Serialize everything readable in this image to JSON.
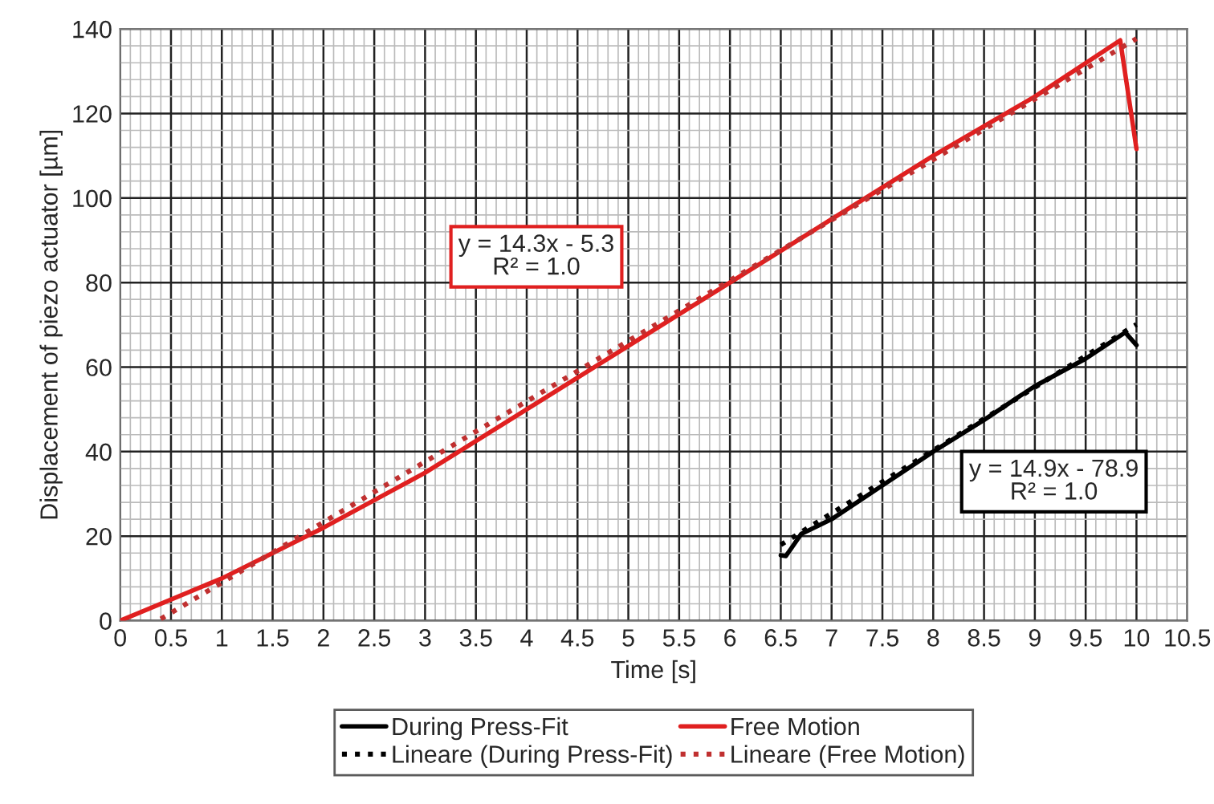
{
  "chart_data": {
    "type": "line",
    "xlabel": "Time [s]",
    "ylabel": "Displacement of piezo actuator [µm]",
    "xlim": [
      0,
      10.5
    ],
    "ylim": [
      0,
      140
    ],
    "xticks": [
      0,
      0.5,
      1,
      1.5,
      2,
      2.5,
      3,
      3.5,
      4,
      4.5,
      5,
      5.5,
      6,
      6.5,
      7,
      7.5,
      8,
      8.5,
      9,
      9.5,
      10,
      10.5
    ],
    "yticks": [
      0,
      20,
      40,
      60,
      80,
      100,
      120,
      140
    ],
    "grid": true,
    "legend": "bottom",
    "annotations": [
      "y = 14.3x - 5.3\nR² = 1.0",
      "y = 14.9x - 78.9\nR² = 1.0"
    ],
    "series": [
      {
        "name": "During Press-Fit",
        "color": "#000000",
        "line_style": "solid",
        "x": [
          6.5,
          6.55,
          6.6,
          6.7,
          7,
          7.5,
          8,
          8.5,
          9,
          9.5,
          9.89,
          10
        ],
        "values": [
          15.5,
          15.3,
          17,
          20.5,
          24,
          32,
          40,
          47.5,
          55.5,
          62,
          68.2,
          65.2
        ]
      },
      {
        "name": "Free Motion",
        "color": "#e02020",
        "line_style": "solid",
        "x": [
          0,
          1,
          2,
          3,
          4,
          5,
          6,
          7,
          8,
          9,
          9.84,
          10
        ],
        "values": [
          0,
          10,
          22,
          35,
          50,
          65,
          80,
          95,
          110,
          124,
          137.3,
          111.6
        ]
      },
      {
        "name": "Lineare (During Press-Fit)",
        "color": "#000000",
        "line_style": "dotted",
        "x": [
          6.5,
          10
        ],
        "values": [
          17.95,
          70.1
        ]
      },
      {
        "name": "Lineare (Free Motion)",
        "color": "#c03030",
        "line_style": "dotted",
        "x": [
          0.4,
          10
        ],
        "values": [
          0.42,
          137.7
        ]
      }
    ]
  }
}
